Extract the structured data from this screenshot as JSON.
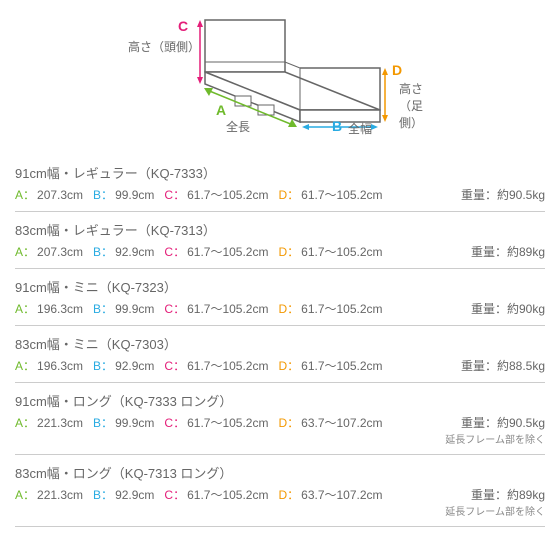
{
  "diagram": {
    "labels": {
      "C": "C",
      "C_text": "高さ（頭側）",
      "D": "D",
      "D_text": "高さ（足側）",
      "A": "A",
      "A_text": "全長",
      "B": "B",
      "B_text": "全幅"
    },
    "colors": {
      "A": "#6fba2c",
      "B": "#29abe2",
      "C": "#e41e79",
      "D": "#f39800"
    },
    "stroke": "#666",
    "fill": "#ffffff"
  },
  "specs": [
    {
      "title": "91cm幅・レギュラー（KQ-7333）",
      "A": "207.3cm",
      "B": "99.9cm",
      "C": "61.7～105.2cm",
      "D": "61.7～105.2cm",
      "weight": "重量：約90.5kg",
      "note": ""
    },
    {
      "title": "83cm幅・レギュラー（KQ-7313）",
      "A": "207.3cm",
      "B": "92.9cm",
      "C": "61.7～105.2cm",
      "D": "61.7～105.2cm",
      "weight": "重量：約89kg",
      "note": ""
    },
    {
      "title": "91cm幅・ミニ（KQ-7323）",
      "A": "196.3cm",
      "B": "99.9cm",
      "C": "61.7～105.2cm",
      "D": "61.7～105.2cm",
      "weight": "重量：約90kg",
      "note": ""
    },
    {
      "title": "83cm幅・ミニ（KQ-7303）",
      "A": "196.3cm",
      "B": "92.9cm",
      "C": "61.7～105.2cm",
      "D": "61.7～105.2cm",
      "weight": "重量：約88.5kg",
      "note": ""
    },
    {
      "title": "91cm幅・ロング（KQ-7333 ロング）",
      "A": "221.3cm",
      "B": "99.9cm",
      "C": "61.7～105.2cm",
      "D": "63.7～107.2cm",
      "weight": "重量：約90.5kg",
      "note": "延長フレーム部を除く"
    },
    {
      "title": "83cm幅・ロング（KQ-7313 ロング）",
      "A": "221.3cm",
      "B": "92.9cm",
      "C": "61.7～105.2cm",
      "D": "63.7～107.2cm",
      "weight": "重量：約89kg",
      "note": "延長フレーム部を除く"
    }
  ]
}
